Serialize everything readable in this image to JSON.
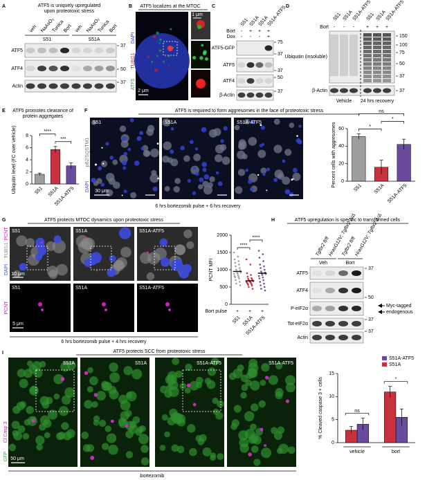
{
  "panel_letters": [
    "A",
    "B",
    "C",
    "D",
    "E",
    "F",
    "G",
    "H",
    "I"
  ],
  "A": {
    "title": [
      "ATF5 is uniquely upregulated",
      "upon proteotoxic stress"
    ],
    "lanes": [
      "veh",
      "NaAsO₂",
      "Tunica",
      "Bort",
      "veh",
      "NaAsO₂",
      "Tunica",
      "Bort"
    ],
    "groups": [
      "S51",
      "S51A"
    ],
    "rows": [
      "ATF5",
      "ATF4",
      "Actin"
    ],
    "markers": [
      "37",
      "50",
      "37"
    ]
  },
  "B": {
    "title": "ATF5 localizes at the MTOC",
    "channels": [
      "DAPI",
      "TUBG1",
      "ATF5"
    ],
    "scale_bars": [
      "2 μm",
      "1 μm"
    ]
  },
  "C": {
    "lanes": [
      "S51",
      "S51A",
      "S51A",
      "S51A-ATF5"
    ],
    "treatments": [
      {
        "name": "Bort",
        "signs": [
          "-",
          "+",
          "+",
          "+"
        ]
      },
      {
        "name": "Dox",
        "signs": [
          "-",
          "-",
          "-",
          "+"
        ]
      }
    ],
    "rows": [
      "ATF5-GFP",
      "ATF5",
      "ATF4",
      "β-Actin"
    ],
    "markers": [
      "75",
      "37",
      "37",
      "50",
      "37"
    ]
  },
  "D": {
    "lanes": [
      "S51",
      "S51A",
      "S51A-ATF5",
      "S51",
      "S51A",
      "S51A-ATF5"
    ],
    "treatment": {
      "name": "Bort",
      "signs": [
        "-",
        "-",
        "-",
        "+",
        "+",
        "+"
      ]
    },
    "rows": [
      "Ubiquitin (insoluble)",
      "β-Actin"
    ],
    "markers": [
      "150",
      "100",
      "75",
      "50",
      "37",
      "37"
    ],
    "groups": [
      "Vehicle",
      "24 hrs recovery"
    ]
  },
  "F": {
    "title": "ATF5 is required to form aggresomes in the face of proteotoxic stress",
    "images": [
      "S51",
      "S51A",
      "S51A-ATF5"
    ],
    "channels": [
      "DAPI",
      "p62/SQSTM1"
    ],
    "scale_bar": "30 μm",
    "caption": "6 hrs bortezomib pulse + 6 hrs recovery"
  },
  "G": {
    "title": "ATF5 protects MTOC dynamics upon proteotoxic stress",
    "images": [
      "S51",
      "S51A",
      "S51A-ATF5"
    ],
    "channels_top": [
      "DAPI",
      "TUBG1",
      "PCNT"
    ],
    "channels_bottom": [
      "PCNT"
    ],
    "scale_bars": [
      "10 μm",
      "5 μm"
    ],
    "caption": "6 hrs bortezomib pulse + 4 hrs recovery"
  },
  "H": {
    "title": "ATF5 upregulation is specific to transformed cells",
    "genotypes": [
      "Tgfbr2 fl/fl",
      "HrasG12V; Tgfbr2 Δ/Δ",
      "Tgfbr2 fl/fl",
      "HrasG12V; Tgfbr2 Δ/Δ"
    ],
    "groups": [
      "Veh",
      "Bort"
    ],
    "rows": [
      "ATF5",
      "ATF4",
      "P-eIF2α",
      "Tot-eIF2α",
      "Actin"
    ],
    "arrows": [
      "Myc-tagged",
      "endogenous"
    ],
    "markers": [
      "37",
      "50",
      "37",
      "37"
    ]
  },
  "I": {
    "title": "ATF5 protects SCC from proteotoxic stress",
    "images": [
      "S51A",
      "S51A",
      "S51A-ATF5",
      "S51A-ATF5"
    ],
    "channels": [
      "GFP",
      "Cl Casp 3"
    ],
    "scale_bar": "50 μm",
    "caption": "bortezomib"
  },
  "chart_data": [
    {
      "type": "bar",
      "title": [
        "ATF5 promotes clearance of",
        "protein aggregates"
      ],
      "ylabel": "Ubiquitin level (FC over vehicle)",
      "categories": [
        "S51",
        "S51A",
        "S51A-ATF5"
      ],
      "values": [
        1.6,
        5.7,
        3.0
      ],
      "errors": [
        0.2,
        0.5,
        0.5
      ],
      "colors": [
        "#9e9e9e",
        "#c8323c",
        "#6a4a9c"
      ],
      "ylim": [
        0,
        8
      ],
      "yticks": [
        0,
        2,
        4,
        6,
        8
      ],
      "significance": [
        {
          "label": "***",
          "from": "S51A",
          "to": "S51A-ATF5"
        },
        {
          "label": "****",
          "from": "S51",
          "to": "S51A"
        }
      ]
    },
    {
      "type": "bar",
      "ylabel": "Percent cells with aggresomes",
      "categories": [
        "S51",
        "S51A",
        "S51A-ATF5"
      ],
      "values": [
        51,
        16,
        42
      ],
      "errors": [
        3,
        8,
        6
      ],
      "colors": [
        "#9e9e9e",
        "#c8323c",
        "#6a4a9c"
      ],
      "ylim": [
        0,
        60
      ],
      "yticks": [
        0,
        20,
        40,
        60
      ],
      "significance": [
        {
          "label": "*",
          "from": "S51",
          "to": "S51A"
        },
        {
          "label": "*",
          "from": "S51A",
          "to": "S51A-ATF5"
        },
        {
          "label": "ns",
          "from": "S51",
          "to": "S51A-ATF5"
        }
      ]
    },
    {
      "type": "strip",
      "ylabel": "PCNT MFI",
      "categories": [
        "S51",
        "S51A",
        "S51A-ATF5"
      ],
      "condition": {
        "name": "Bort pulse",
        "signs": [
          "+",
          "+",
          "+"
        ]
      },
      "colors": [
        "#9e9e9e",
        "#c8323c",
        "#6a4a9c"
      ],
      "points": [
        [
          1500,
          1380,
          1300,
          1250,
          1200,
          1150,
          1100,
          1050,
          1000,
          980,
          950,
          920,
          900,
          880,
          850,
          820,
          800,
          780,
          750,
          700,
          650,
          600,
          550
        ],
        [
          1300,
          1150,
          900,
          850,
          800,
          760,
          740,
          720,
          700,
          690,
          680,
          670,
          660,
          650,
          640,
          630,
          620,
          600,
          580,
          560,
          540,
          500,
          450
        ],
        [
          1550,
          1450,
          1350,
          1250,
          1150,
          1100,
          1050,
          1000,
          950,
          920,
          900,
          880,
          850,
          820,
          780,
          750,
          700,
          650,
          600,
          550,
          500,
          450,
          400
        ]
      ],
      "medians": [
        950,
        680,
        900
      ],
      "ylim": [
        0,
        2000
      ],
      "yticks": [
        0,
        500,
        1000,
        1500,
        2000
      ],
      "significance": [
        {
          "label": "****",
          "from": "S51",
          "to": "S51A"
        },
        {
          "label": "****",
          "from": "S51A",
          "to": "S51A-ATF5"
        }
      ]
    },
    {
      "type": "bar",
      "ylabel": "% Cleaved caspase 3 + cells",
      "categories": [
        "vehicle",
        "bort"
      ],
      "legend": "upper right",
      "series": [
        {
          "name": "S51A-ATF5",
          "color": "#6a4a9c",
          "values": [
            4.0,
            5.5
          ],
          "errors": [
            1.3,
            1.8
          ]
        },
        {
          "name": "S51A",
          "color": "#c8323c",
          "values": [
            2.7,
            11.0
          ],
          "errors": [
            0.8,
            1.2
          ]
        }
      ],
      "ylim": [
        0,
        15
      ],
      "yticks": [
        0,
        5,
        10,
        15
      ],
      "significance": [
        {
          "label": "ns",
          "category": "vehicle"
        },
        {
          "label": "*",
          "category": "bort"
        }
      ]
    }
  ]
}
